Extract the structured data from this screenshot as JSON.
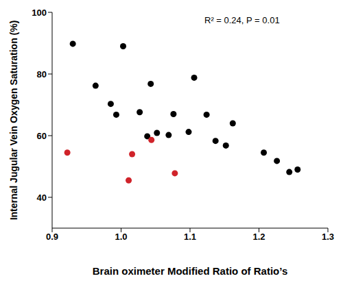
{
  "chart_data": {
    "type": "scatter",
    "x_label": "Brain oximeter Modified Ratio of Ratio’s",
    "y_label": "Internal Jugular Vein Oxygen Saturation (%)",
    "annotation": "R² = 0.24, P = 0.01",
    "xlim": [
      0.9,
      1.3
    ],
    "xticks": [
      0.9,
      {
        "value": 1,
        "label": "1.0"
      },
      1.1,
      1.2,
      1.3
    ],
    "ylim": [
      30,
      100
    ],
    "yticks": [
      40,
      60,
      80,
      100
    ],
    "grid": false,
    "series": [
      {
        "color": "#000000",
        "marker": "circle",
        "x": [
          0.93,
          0.963,
          0.985,
          0.993,
          1.003,
          1.027,
          1.038,
          1.043,
          1.052,
          1.069,
          1.076,
          1.098,
          1.106,
          1.124,
          1.137,
          1.152,
          1.162,
          1.207,
          1.226,
          1.244,
          1.256
        ],
        "values": [
          89.8,
          76.2,
          70.3,
          66.8,
          89,
          67.6,
          59.8,
          76.8,
          60.9,
          60.2,
          67,
          61.2,
          78.8,
          66.8,
          58.3,
          56.8,
          64,
          54.5,
          51.8,
          48.2,
          49
        ]
      },
      {
        "color": "#d0232a",
        "marker": "circle",
        "x": [
          0.922,
          1.011,
          1.016,
          1.044,
          1.078
        ],
        "values": [
          54.5,
          45.5,
          54,
          58.6,
          47.8
        ]
      }
    ]
  }
}
